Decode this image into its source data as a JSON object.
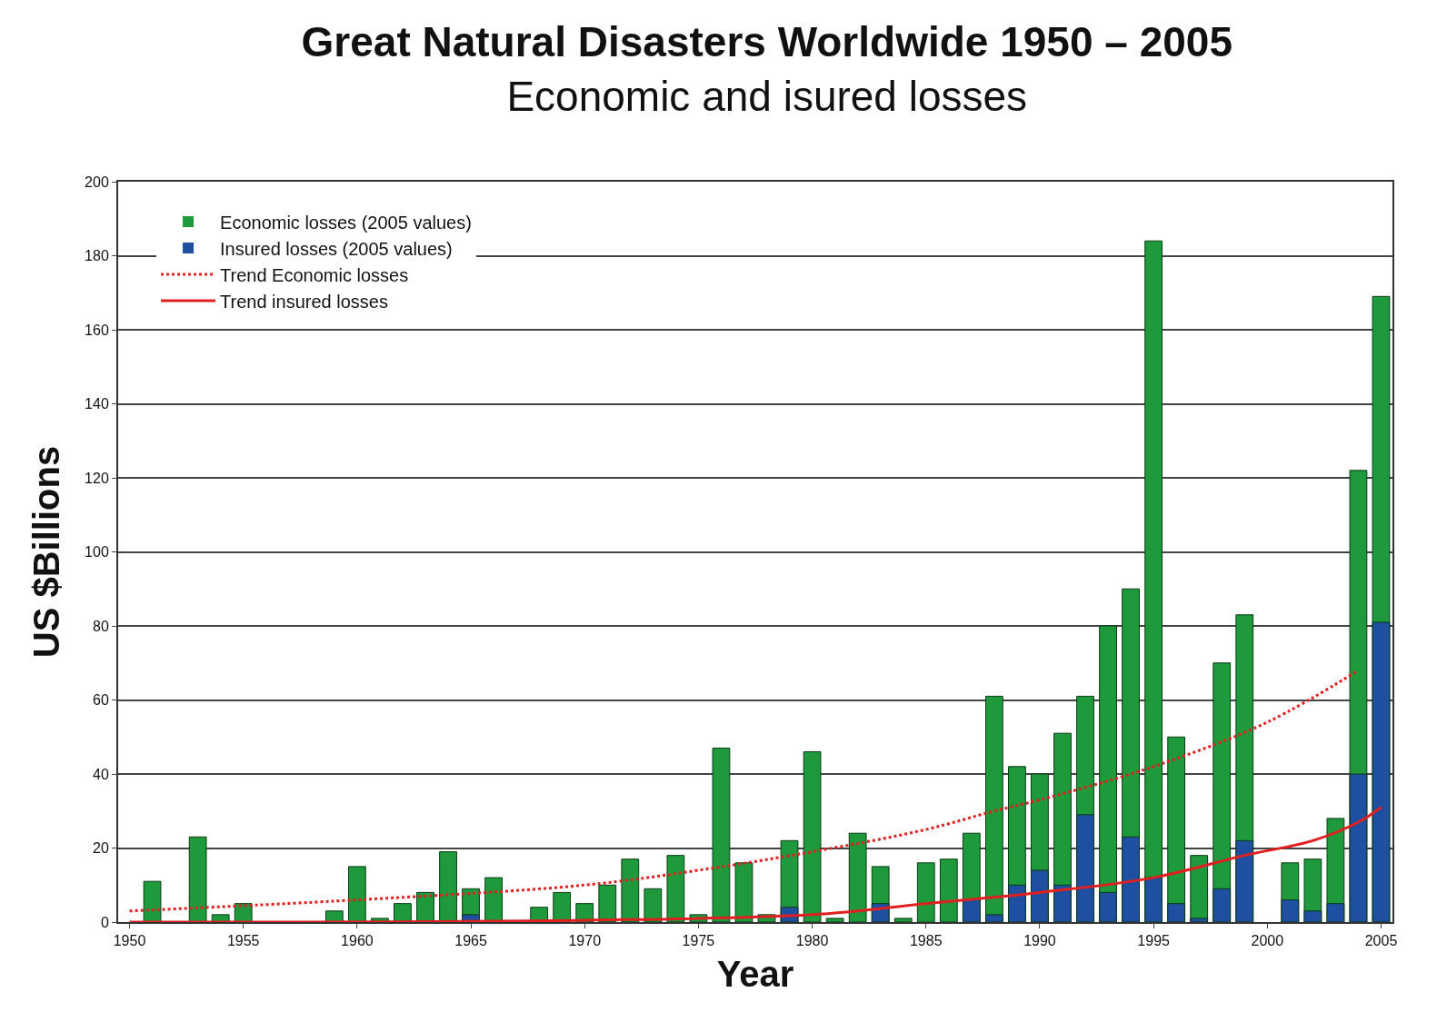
{
  "chart_data": {
    "type": "bar",
    "title": "Great Natural Disasters Worldwide 1950 – 2005",
    "subtitle": "Economic and isured losses",
    "xlabel": "Year",
    "ylabel": "US $Billions",
    "x": [
      1950,
      1951,
      1952,
      1953,
      1954,
      1955,
      1956,
      1957,
      1958,
      1959,
      1960,
      1961,
      1962,
      1963,
      1964,
      1965,
      1966,
      1967,
      1968,
      1969,
      1970,
      1971,
      1972,
      1973,
      1974,
      1975,
      1976,
      1977,
      1978,
      1979,
      1980,
      1981,
      1982,
      1983,
      1984,
      1985,
      1986,
      1987,
      1988,
      1989,
      1990,
      1991,
      1992,
      1993,
      1994,
      1995,
      1996,
      1997,
      1998,
      1999,
      2000,
      2001,
      2002,
      2003,
      2004,
      2005
    ],
    "series": [
      {
        "name": "Economic losses (2005 values)",
        "color": "#1e9a3c",
        "values": [
          0,
          11,
          0,
          23,
          2,
          5,
          0,
          0,
          0,
          3,
          15,
          1,
          5,
          8,
          19,
          9,
          12,
          0,
          4,
          8,
          5,
          10,
          17,
          9,
          18,
          2,
          47,
          16,
          2,
          22,
          46,
          1,
          24,
          15,
          1,
          16,
          17,
          24,
          61,
          42,
          40,
          51,
          61,
          80,
          90,
          184,
          50,
          18,
          70,
          83,
          0,
          16,
          17,
          28,
          122,
          169
        ]
      },
      {
        "name": "Insured losses (2005 values)",
        "color": "#1f4fa0",
        "values": [
          0,
          0,
          0,
          0,
          0,
          0,
          0,
          0,
          0,
          0,
          0,
          0,
          0,
          0,
          0,
          2,
          0,
          0,
          0,
          0,
          0,
          0,
          0,
          0,
          0,
          0,
          0,
          0,
          0,
          4,
          0,
          0,
          0,
          5,
          0,
          0,
          0,
          6,
          2,
          10,
          14,
          10,
          29,
          8,
          23,
          12,
          5,
          1,
          9,
          22,
          0,
          6,
          3,
          5,
          40,
          81
        ]
      },
      {
        "name": "Trend Economic losses",
        "type": "line",
        "line_style": "dotted",
        "color": "#e02020",
        "x": [
          1950,
          1960,
          1970,
          1975,
          1980,
          1985,
          1988,
          1990,
          1995,
          2000,
          2004
        ],
        "values": [
          3,
          6,
          10,
          14,
          19,
          25,
          30,
          33,
          42,
          54,
          68
        ]
      },
      {
        "name": "Trend insured losses",
        "type": "line",
        "line_style": "solid",
        "color": "#e02020",
        "x": [
          1950,
          1970,
          1980,
          1985,
          1990,
          1995,
          1999,
          2002,
          2004,
          2005
        ],
        "values": [
          0,
          0.5,
          2,
          5,
          8,
          12,
          18,
          22,
          27,
          31
        ]
      }
    ],
    "xlim": [
      1949.5,
      2005.5
    ],
    "xticks": [
      1950,
      1955,
      1960,
      1965,
      1970,
      1975,
      1980,
      1985,
      1990,
      1995,
      2000,
      2005
    ],
    "ylim": [
      0,
      200
    ],
    "yticks": [
      0,
      20,
      40,
      60,
      80,
      100,
      120,
      140,
      160,
      180,
      200
    ],
    "grid": "y",
    "legend": "top left"
  }
}
